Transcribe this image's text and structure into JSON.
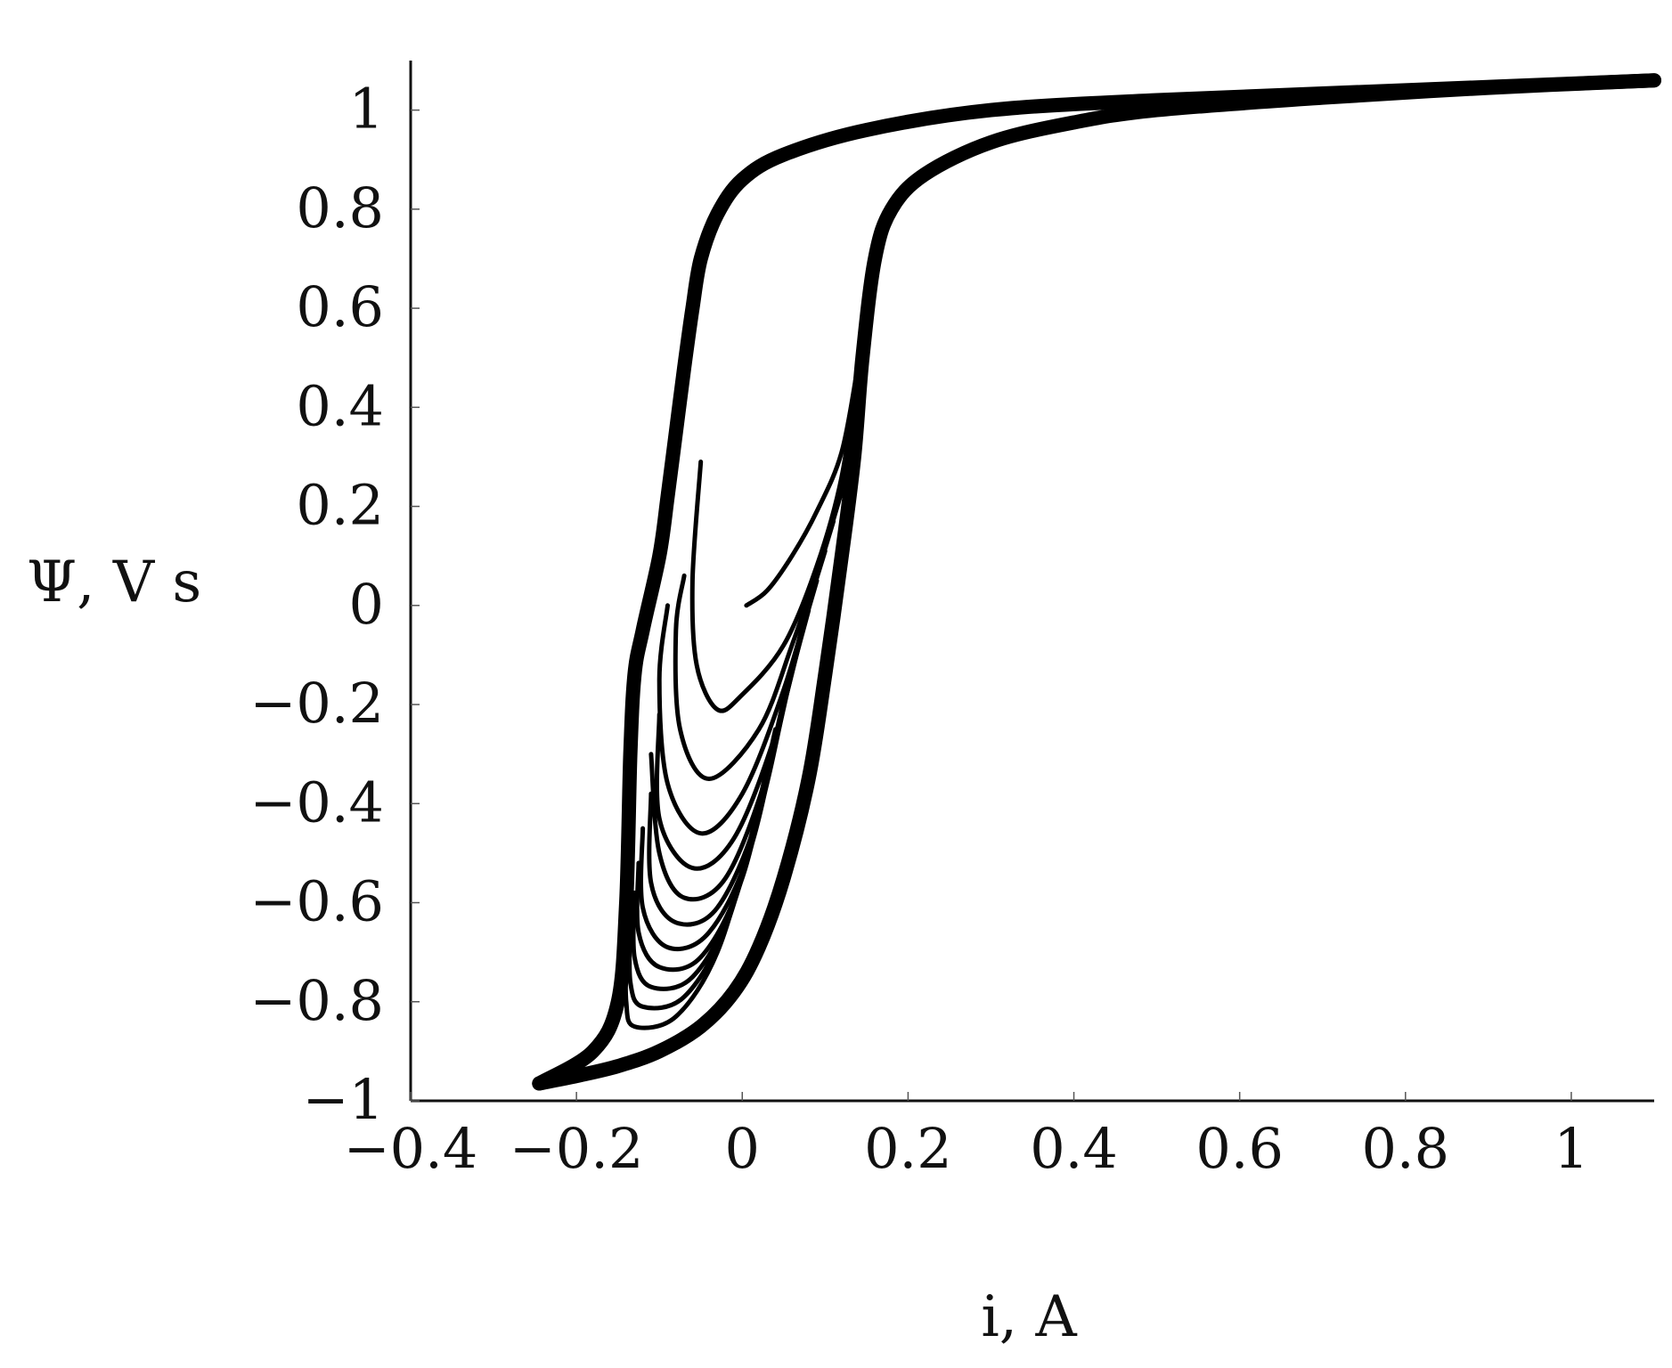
{
  "chart_data": {
    "type": "line",
    "title": "",
    "xlabel": "i, A",
    "ylabel": "Ψ, V s",
    "xlim": [
      -0.4,
      1.1
    ],
    "ylim": [
      -1.0,
      1.1
    ],
    "xticks": [
      -0.4,
      -0.2,
      0,
      0.2,
      0.4,
      0.6,
      0.8,
      1
    ],
    "yticks": [
      -1,
      -0.8,
      -0.6,
      -0.4,
      -0.2,
      0,
      0.2,
      0.4,
      0.6,
      0.8,
      1
    ],
    "xtick_labels": [
      "−0.4",
      "−0.2",
      "0",
      "0.2",
      "0.4",
      "0.6",
      "0.8",
      "1"
    ],
    "ytick_labels": [
      "−1",
      "−0.8",
      "−0.6",
      "−0.4",
      "−0.2",
      "0",
      "0.2",
      "0.4",
      "0.6",
      "0.8",
      "1"
    ],
    "grid": false,
    "legend": false,
    "line_color": "#000000",
    "series": [
      {
        "values": [
          [
            0.005,
            0.0
          ],
          [
            0.03,
            0.03
          ],
          [
            0.06,
            0.1
          ],
          [
            0.09,
            0.19
          ],
          [
            0.12,
            0.31
          ],
          [
            0.14,
            0.49
          ]
        ]
      },
      {
        "values": [
          [
            0.14,
            0.49
          ],
          [
            0.12,
            0.26
          ],
          [
            0.09,
            0.08
          ],
          [
            0.05,
            -0.08
          ],
          [
            0.0,
            -0.18
          ],
          [
            -0.03,
            -0.21
          ],
          [
            -0.055,
            -0.12
          ],
          [
            -0.06,
            0.05
          ],
          [
            -0.05,
            0.29
          ]
        ]
      },
      {
        "values": [
          [
            0.13,
            0.3
          ],
          [
            0.1,
            0.12
          ],
          [
            0.06,
            -0.08
          ],
          [
            0.02,
            -0.25
          ],
          [
            -0.04,
            -0.35
          ],
          [
            -0.075,
            -0.25
          ],
          [
            -0.08,
            -0.05
          ],
          [
            -0.07,
            0.06
          ]
        ]
      },
      {
        "values": [
          [
            0.12,
            0.23
          ],
          [
            0.09,
            0.06
          ],
          [
            0.05,
            -0.17
          ],
          [
            0.0,
            -0.38
          ],
          [
            -0.05,
            -0.46
          ],
          [
            -0.09,
            -0.36
          ],
          [
            -0.1,
            -0.15
          ],
          [
            -0.09,
            0.0
          ]
        ]
      },
      {
        "values": [
          [
            0.11,
            0.17
          ],
          [
            0.08,
            0.0
          ],
          [
            0.04,
            -0.26
          ],
          [
            -0.01,
            -0.47
          ],
          [
            -0.06,
            -0.53
          ],
          [
            -0.1,
            -0.43
          ],
          [
            -0.1,
            -0.22
          ]
        ]
      },
      {
        "values": [
          [
            0.1,
            0.11
          ],
          [
            0.07,
            -0.06
          ],
          [
            0.03,
            -0.34
          ],
          [
            -0.02,
            -0.55
          ],
          [
            -0.07,
            -0.59
          ],
          [
            -0.1,
            -0.5
          ],
          [
            -0.11,
            -0.3
          ]
        ]
      },
      {
        "values": [
          [
            0.09,
            0.05
          ],
          [
            0.06,
            -0.13
          ],
          [
            0.02,
            -0.42
          ],
          [
            -0.03,
            -0.61
          ],
          [
            -0.08,
            -0.64
          ],
          [
            -0.11,
            -0.56
          ],
          [
            -0.11,
            -0.38
          ]
        ]
      },
      {
        "values": [
          [
            0.08,
            -0.01
          ],
          [
            0.05,
            -0.2
          ],
          [
            0.01,
            -0.49
          ],
          [
            -0.04,
            -0.66
          ],
          [
            -0.09,
            -0.69
          ],
          [
            -0.12,
            -0.61
          ],
          [
            -0.12,
            -0.45
          ]
        ]
      },
      {
        "values": [
          [
            0.07,
            -0.07
          ],
          [
            0.04,
            -0.27
          ],
          [
            0.0,
            -0.55
          ],
          [
            -0.05,
            -0.71
          ],
          [
            -0.1,
            -0.73
          ],
          [
            -0.125,
            -0.66
          ],
          [
            -0.125,
            -0.52
          ]
        ]
      },
      {
        "values": [
          [
            0.06,
            -0.13
          ],
          [
            0.03,
            -0.34
          ],
          [
            -0.01,
            -0.6
          ],
          [
            -0.06,
            -0.75
          ],
          [
            -0.11,
            -0.77
          ],
          [
            -0.13,
            -0.71
          ],
          [
            -0.13,
            -0.58
          ]
        ]
      },
      {
        "values": [
          [
            0.05,
            -0.19
          ],
          [
            0.02,
            -0.41
          ],
          [
            -0.02,
            -0.65
          ],
          [
            -0.07,
            -0.79
          ],
          [
            -0.12,
            -0.81
          ],
          [
            -0.135,
            -0.76
          ],
          [
            -0.135,
            -0.63
          ]
        ]
      },
      {
        "values": [
          [
            0.04,
            -0.25
          ],
          [
            0.01,
            -0.47
          ],
          [
            -0.03,
            -0.7
          ],
          [
            -0.08,
            -0.83
          ],
          [
            -0.13,
            -0.85
          ],
          [
            -0.14,
            -0.8
          ],
          [
            -0.14,
            -0.68
          ]
        ]
      },
      {
        "values": [
          [
            -0.245,
            -0.965
          ],
          [
            -0.2,
            -0.95
          ],
          [
            -0.15,
            -0.93
          ],
          [
            -0.1,
            -0.9
          ],
          [
            -0.05,
            -0.85
          ],
          [
            -0.01,
            -0.78
          ],
          [
            0.02,
            -0.69
          ],
          [
            0.05,
            -0.55
          ],
          [
            0.08,
            -0.35
          ],
          [
            0.1,
            -0.14
          ],
          [
            0.12,
            0.1
          ],
          [
            0.135,
            0.3
          ],
          [
            0.145,
            0.5
          ],
          [
            0.16,
            0.7
          ],
          [
            0.18,
            0.8
          ],
          [
            0.22,
            0.87
          ],
          [
            0.3,
            0.935
          ],
          [
            0.4,
            0.975
          ],
          [
            0.5,
            1.0
          ],
          [
            0.7,
            1.025
          ],
          [
            0.9,
            1.045
          ],
          [
            1.1,
            1.06
          ]
        ]
      },
      {
        "values": [
          [
            1.1,
            1.06
          ],
          [
            0.8,
            1.04
          ],
          [
            0.5,
            1.02
          ],
          [
            0.3,
            1.0
          ],
          [
            0.15,
            0.96
          ],
          [
            0.05,
            0.91
          ],
          [
            0.0,
            0.86
          ],
          [
            -0.03,
            0.79
          ],
          [
            -0.05,
            0.7
          ],
          [
            -0.06,
            0.6
          ],
          [
            -0.07,
            0.48
          ],
          [
            -0.08,
            0.35
          ],
          [
            -0.09,
            0.22
          ],
          [
            -0.1,
            0.1
          ],
          [
            -0.12,
            -0.05
          ],
          [
            -0.13,
            -0.14
          ],
          [
            -0.135,
            -0.3
          ],
          [
            -0.14,
            -0.6
          ],
          [
            -0.15,
            -0.8
          ],
          [
            -0.18,
            -0.9
          ],
          [
            -0.245,
            -0.965
          ]
        ]
      }
    ]
  }
}
